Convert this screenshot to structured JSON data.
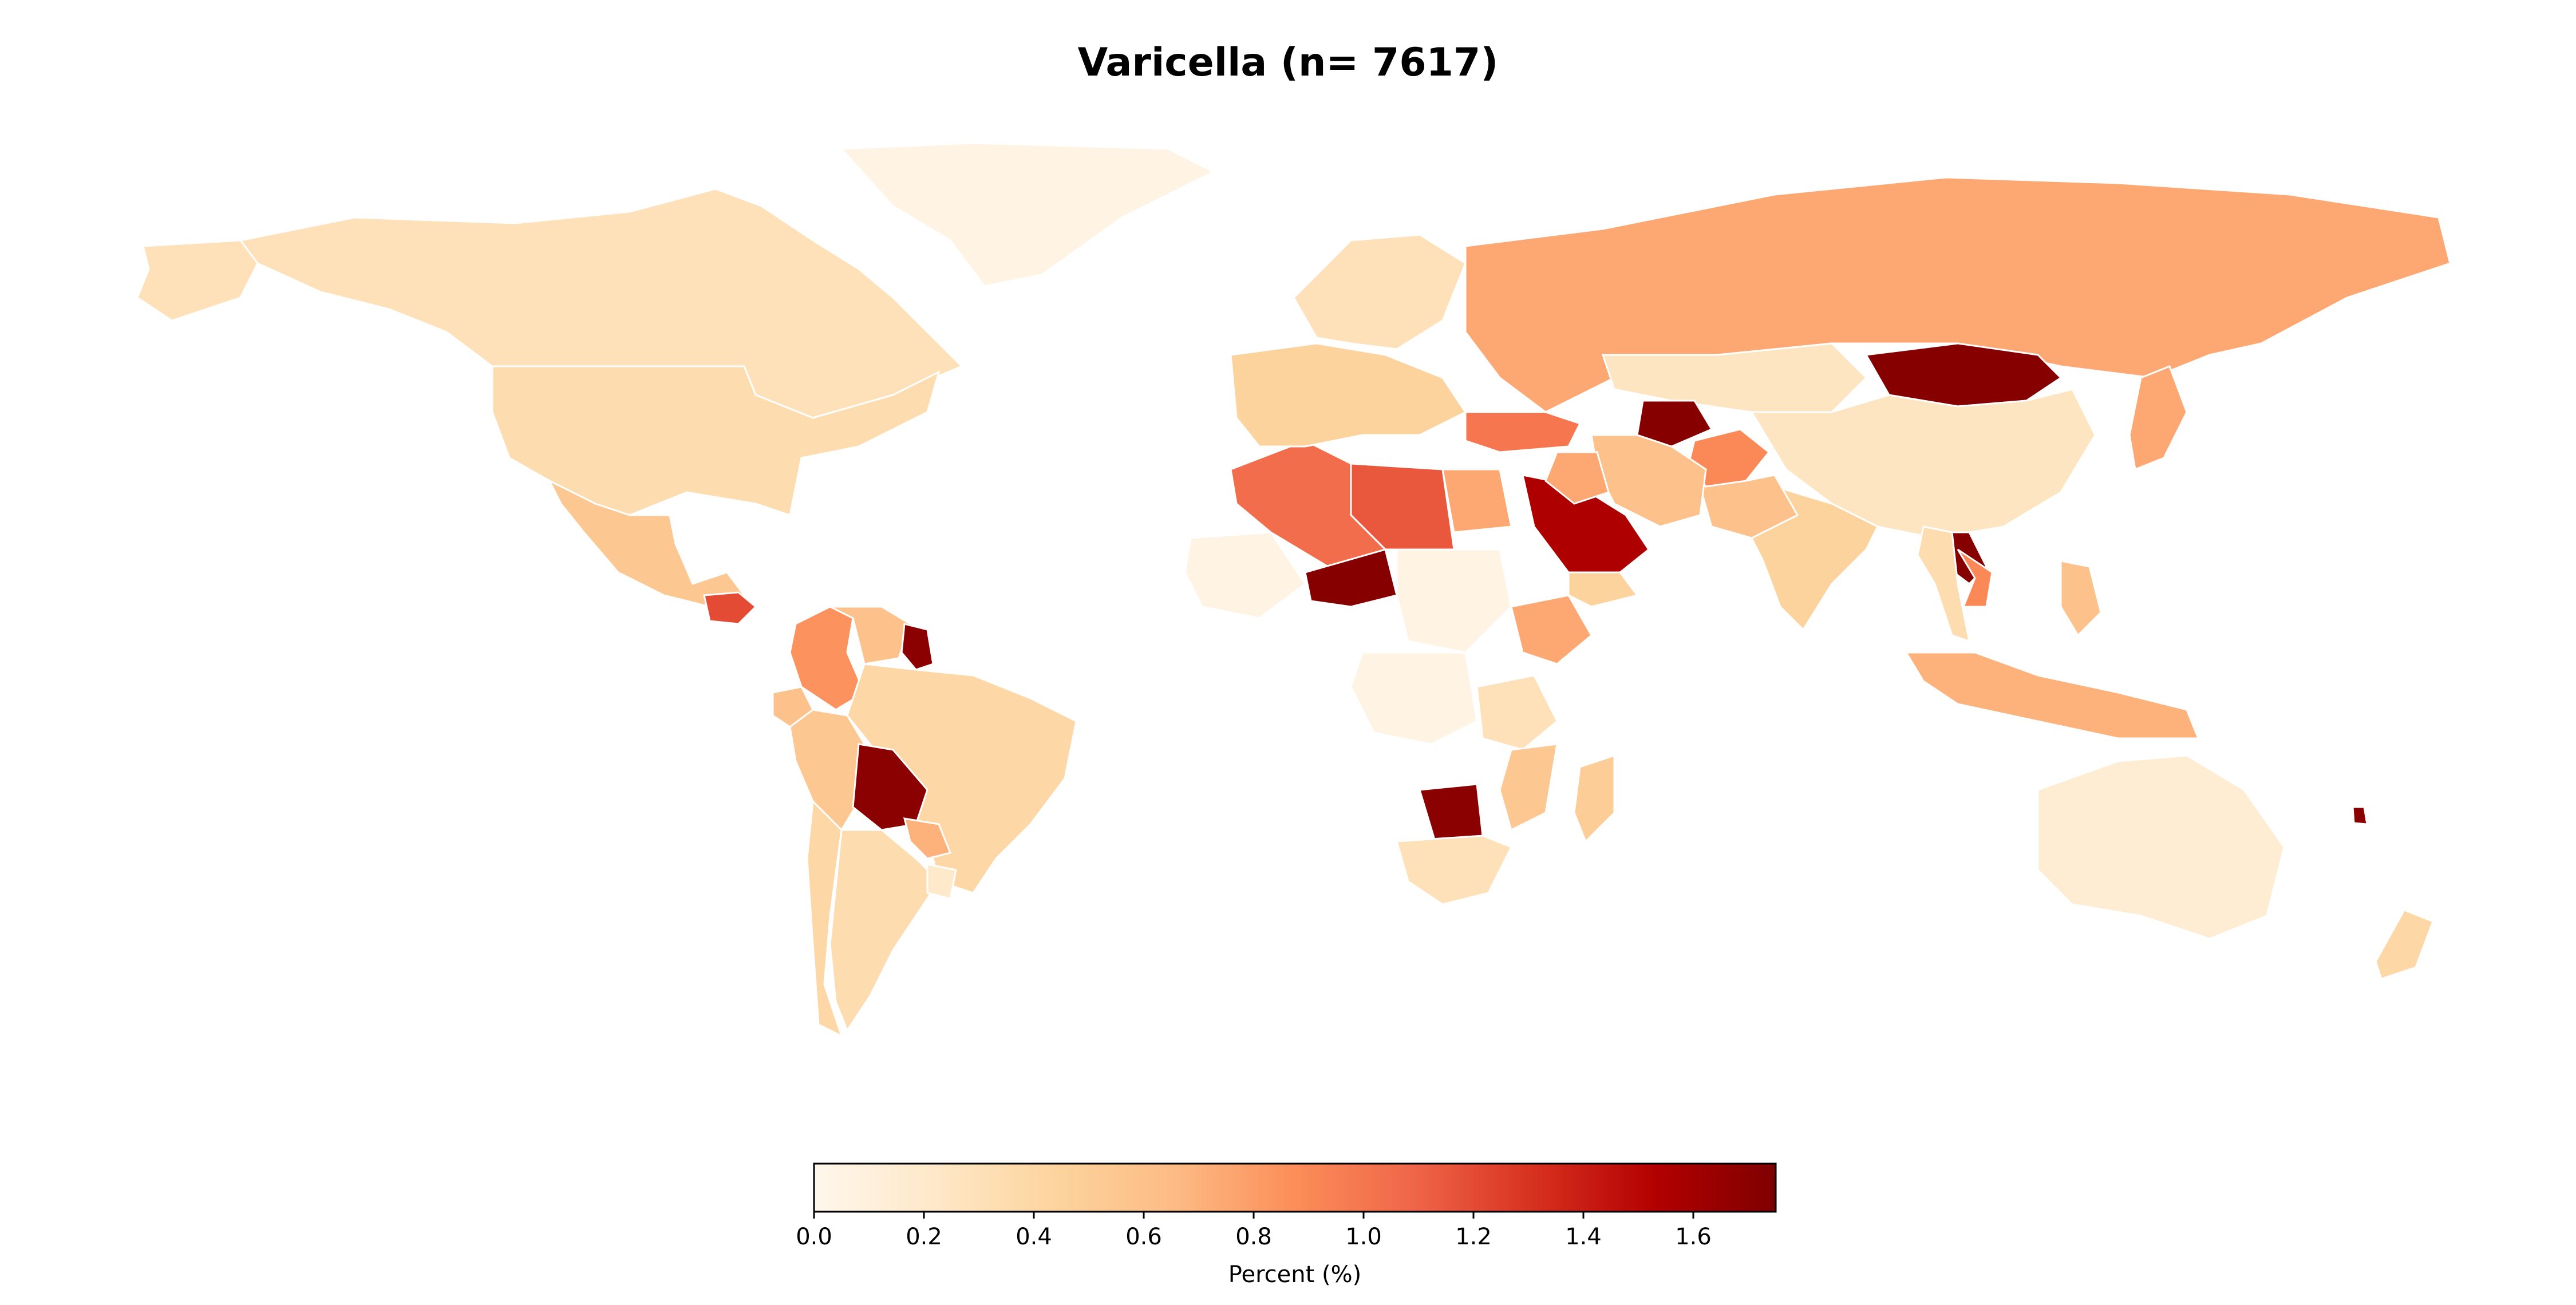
{
  "title": "Varicella (n= 7617)",
  "colorbar": {
    "label": "Percent (%)",
    "min": 0.0,
    "max": 1.75,
    "colormap": "OrRd",
    "stops": [
      "#fff7ec",
      "#fee8c8",
      "#fdd49e",
      "#fdbb84",
      "#fc8d59",
      "#ef6548",
      "#d7301f",
      "#b30000",
      "#7f0000"
    ],
    "ticks": [
      "0.0",
      "0.2",
      "0.4",
      "0.6",
      "0.8",
      "1.0",
      "1.2",
      "1.4",
      "1.6"
    ]
  },
  "chart_data": {
    "type": "choropleth",
    "title": "Varicella (n= 7617)",
    "legend_label": "Percent (%)",
    "value_range": [
      0.0,
      1.75
    ],
    "regions": [
      {
        "name": "Canada",
        "value": 0.3
      },
      {
        "name": "United States",
        "value": 0.35
      },
      {
        "name": "Alaska",
        "value": 0.3
      },
      {
        "name": "Greenland",
        "value": 0.05
      },
      {
        "name": "Mexico",
        "value": 0.55
      },
      {
        "name": "Guatemala",
        "value": 1.2
      },
      {
        "name": "Venezuela",
        "value": 0.6
      },
      {
        "name": "Colombia",
        "value": 0.85
      },
      {
        "name": "Guyana",
        "value": 1.7
      },
      {
        "name": "Ecuador",
        "value": 0.6
      },
      {
        "name": "Peru",
        "value": 0.55
      },
      {
        "name": "Brazil",
        "value": 0.4
      },
      {
        "name": "Bolivia",
        "value": 1.7
      },
      {
        "name": "Paraguay",
        "value": 0.7
      },
      {
        "name": "Argentina",
        "value": 0.35
      },
      {
        "name": "Chile",
        "value": 0.4
      },
      {
        "name": "Uruguay",
        "value": 0.2
      },
      {
        "name": "Russia",
        "value": 0.75
      },
      {
        "name": "Mongolia",
        "value": 1.72
      },
      {
        "name": "China",
        "value": 0.25
      },
      {
        "name": "Kazakhstan",
        "value": 0.25
      },
      {
        "name": "Japan",
        "value": 0.75
      },
      {
        "name": "India",
        "value": 0.45
      },
      {
        "name": "Pakistan",
        "value": 0.6
      },
      {
        "name": "Afghanistan",
        "value": 0.9
      },
      {
        "name": "Iran",
        "value": 0.6
      },
      {
        "name": "Turkmenistan",
        "value": 1.72
      },
      {
        "name": "Turkey",
        "value": 1.0
      },
      {
        "name": "Saudi Arabia",
        "value": 1.55
      },
      {
        "name": "Yemen",
        "value": 0.45
      },
      {
        "name": "Iraq",
        "value": 0.75
      },
      {
        "name": "Egypt",
        "value": 0.75
      },
      {
        "name": "Libya",
        "value": 1.15
      },
      {
        "name": "Algeria",
        "value": 1.05
      },
      {
        "name": "Niger",
        "value": 1.72
      },
      {
        "name": "Ethiopia",
        "value": 0.75
      },
      {
        "name": "Botswana",
        "value": 1.7
      },
      {
        "name": "South Africa",
        "value": 0.3
      },
      {
        "name": "Madagascar",
        "value": 0.5
      },
      {
        "name": "Tanzania",
        "value": 0.3
      },
      {
        "name": "Mozambique",
        "value": 0.55
      },
      {
        "name": "Laos",
        "value": 1.72
      },
      {
        "name": "Vietnam",
        "value": 0.9
      },
      {
        "name": "Thailand",
        "value": 0.35
      },
      {
        "name": "Indonesia",
        "value": 0.7
      },
      {
        "name": "Philippines",
        "value": 0.6
      },
      {
        "name": "Australia",
        "value": 0.15
      },
      {
        "name": "New Zealand",
        "value": 0.4
      },
      {
        "name": "Sudan",
        "value": 0.05
      },
      {
        "name": "DR Congo",
        "value": 0.05
      },
      {
        "name": "Mali",
        "value": 0.05
      },
      {
        "name": "Europe (west)",
        "value": 0.45
      },
      {
        "name": "Scandinavia",
        "value": 0.3
      },
      {
        "name": "Vanuatu",
        "value": 1.7
      }
    ]
  }
}
